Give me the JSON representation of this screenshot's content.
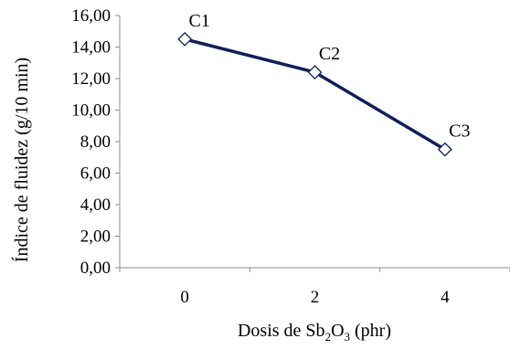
{
  "chart_data": {
    "type": "line",
    "categories": [
      "0",
      "2",
      "4"
    ],
    "series": [
      {
        "values": [
          14.5,
          12.4,
          7.5
        ],
        "point_labels": [
          "C1",
          "C2",
          "C3"
        ],
        "color": "#0f1f5c",
        "marker": "diamond-hollow"
      }
    ],
    "y_ticks": [
      "0,00",
      "2,00",
      "4,00",
      "6,00",
      "8,00",
      "10,00",
      "12,00",
      "14,00",
      "16,00"
    ],
    "ylim": [
      0,
      16
    ],
    "ylabel": "Índice de fluidez (g/10 min)",
    "xlabel": {
      "prefix": "Dosis de Sb",
      "sub1": "2",
      "mid": "O",
      "sub2": "3",
      "suffix": " (phr)"
    },
    "grid": false,
    "legend": "none"
  }
}
